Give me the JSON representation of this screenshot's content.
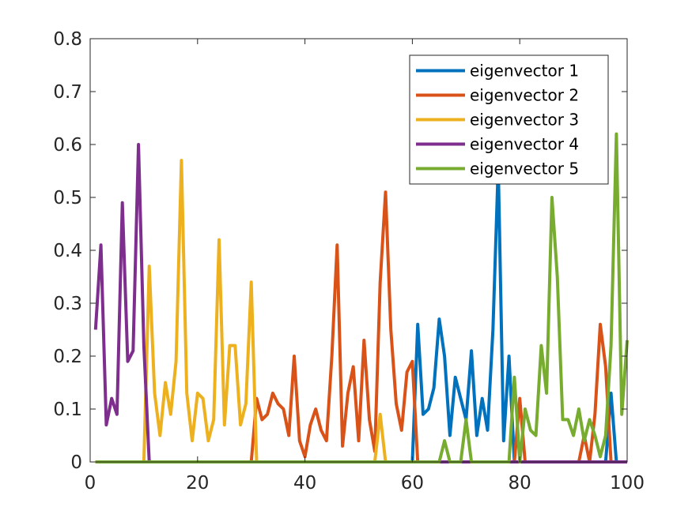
{
  "chart_data": {
    "type": "line",
    "title": "",
    "xlabel": "",
    "ylabel": "",
    "xlim": [
      0,
      100
    ],
    "ylim": [
      0,
      0.8
    ],
    "xticks": [
      0,
      20,
      40,
      60,
      80,
      100
    ],
    "xtick_labels": [
      "0",
      "20",
      "40",
      "60",
      "80",
      "100"
    ],
    "yticks": [
      0,
      0.1,
      0.2,
      0.3,
      0.4,
      0.5,
      0.6,
      0.7,
      0.8
    ],
    "ytick_labels": [
      "0",
      "0.1",
      "0.2",
      "0.3",
      "0.4",
      "0.5",
      "0.6",
      "0.7",
      "0.8"
    ],
    "grid": false,
    "legend_position": "top-right",
    "series": [
      {
        "name": "eigenvector 1",
        "color": "#0072BD",
        "points": [
          [
            1,
            0
          ],
          [
            60,
            0
          ],
          [
            61,
            0.26
          ],
          [
            62,
            0.09
          ],
          [
            63,
            0.1
          ],
          [
            64,
            0.14
          ],
          [
            65,
            0.27
          ],
          [
            66,
            0.2
          ],
          [
            67,
            0.05
          ],
          [
            68,
            0.16
          ],
          [
            69,
            0.12
          ],
          [
            70,
            0.08
          ],
          [
            71,
            0.21
          ],
          [
            72,
            0.05
          ],
          [
            73,
            0.12
          ],
          [
            74,
            0.06
          ],
          [
            75,
            0.25
          ],
          [
            76,
            0.56
          ],
          [
            77,
            0.04
          ],
          [
            78,
            0.2
          ],
          [
            79,
            0
          ],
          [
            96,
            0
          ],
          [
            97,
            0.13
          ],
          [
            98,
            0
          ],
          [
            100,
            0
          ]
        ]
      },
      {
        "name": "eigenvector 2",
        "color": "#D95319",
        "points": [
          [
            1,
            0
          ],
          [
            30,
            0
          ],
          [
            31,
            0.12
          ],
          [
            32,
            0.08
          ],
          [
            33,
            0.09
          ],
          [
            34,
            0.13
          ],
          [
            35,
            0.11
          ],
          [
            36,
            0.1
          ],
          [
            37,
            0.05
          ],
          [
            38,
            0.2
          ],
          [
            39,
            0.04
          ],
          [
            40,
            0.01
          ],
          [
            41,
            0.07
          ],
          [
            42,
            0.1
          ],
          [
            43,
            0.06
          ],
          [
            44,
            0.04
          ],
          [
            45,
            0.2
          ],
          [
            46,
            0.41
          ],
          [
            47,
            0.03
          ],
          [
            48,
            0.13
          ],
          [
            49,
            0.18
          ],
          [
            50,
            0.04
          ],
          [
            51,
            0.23
          ],
          [
            52,
            0.08
          ],
          [
            53,
            0.02
          ],
          [
            54,
            0.34
          ],
          [
            55,
            0.51
          ],
          [
            56,
            0.25
          ],
          [
            57,
            0.11
          ],
          [
            58,
            0.06
          ],
          [
            59,
            0.17
          ],
          [
            60,
            0.19
          ],
          [
            61,
            0
          ],
          [
            79,
            0
          ],
          [
            80,
            0.12
          ],
          [
            81,
            0
          ],
          [
            91,
            0
          ],
          [
            92,
            0.05
          ],
          [
            93,
            0
          ],
          [
            94,
            0.09
          ],
          [
            95,
            0.26
          ],
          [
            96,
            0.18
          ],
          [
            97,
            0
          ],
          [
            100,
            0
          ]
        ]
      },
      {
        "name": "eigenvector 3",
        "color": "#EDB120",
        "points": [
          [
            1,
            0
          ],
          [
            10,
            0
          ],
          [
            11,
            0.37
          ],
          [
            12,
            0.13
          ],
          [
            13,
            0.05
          ],
          [
            14,
            0.15
          ],
          [
            15,
            0.09
          ],
          [
            16,
            0.19
          ],
          [
            17,
            0.57
          ],
          [
            18,
            0.13
          ],
          [
            19,
            0.04
          ],
          [
            20,
            0.13
          ],
          [
            21,
            0.12
          ],
          [
            22,
            0.04
          ],
          [
            23,
            0.08
          ],
          [
            24,
            0.42
          ],
          [
            25,
            0.07
          ],
          [
            26,
            0.22
          ],
          [
            27,
            0.22
          ],
          [
            28,
            0.07
          ],
          [
            29,
            0.11
          ],
          [
            30,
            0.34
          ],
          [
            31,
            0
          ],
          [
            53,
            0
          ],
          [
            54,
            0.09
          ],
          [
            55,
            0
          ],
          [
            100,
            0
          ]
        ]
      },
      {
        "name": "eigenvector 4",
        "color": "#7E2F8E",
        "points": [
          [
            1,
            0.25
          ],
          [
            2,
            0.41
          ],
          [
            3,
            0.07
          ],
          [
            4,
            0.12
          ],
          [
            5,
            0.09
          ],
          [
            6,
            0.49
          ],
          [
            7,
            0.19
          ],
          [
            8,
            0.21
          ],
          [
            9,
            0.6
          ],
          [
            10,
            0.22
          ],
          [
            11,
            0
          ],
          [
            100,
            0
          ]
        ]
      },
      {
        "name": "eigenvector 5",
        "color": "#77AC30",
        "points": [
          [
            1,
            0
          ],
          [
            65,
            0
          ],
          [
            66,
            0.04
          ],
          [
            67,
            0
          ],
          [
            69,
            0
          ],
          [
            70,
            0.08
          ],
          [
            71,
            0
          ],
          [
            78,
            0
          ],
          [
            79,
            0.16
          ],
          [
            80,
            0
          ],
          [
            81,
            0.1
          ],
          [
            82,
            0.06
          ],
          [
            83,
            0.05
          ],
          [
            84,
            0.22
          ],
          [
            85,
            0.13
          ],
          [
            86,
            0.5
          ],
          [
            87,
            0.35
          ],
          [
            88,
            0.08
          ],
          [
            89,
            0.08
          ],
          [
            90,
            0.05
          ],
          [
            91,
            0.1
          ],
          [
            92,
            0.04
          ],
          [
            93,
            0.08
          ],
          [
            94,
            0.05
          ],
          [
            95,
            0.01
          ],
          [
            96,
            0.05
          ],
          [
            97,
            0.22
          ],
          [
            98,
            0.62
          ],
          [
            99,
            0.09
          ],
          [
            100,
            0.23
          ]
        ]
      }
    ]
  }
}
